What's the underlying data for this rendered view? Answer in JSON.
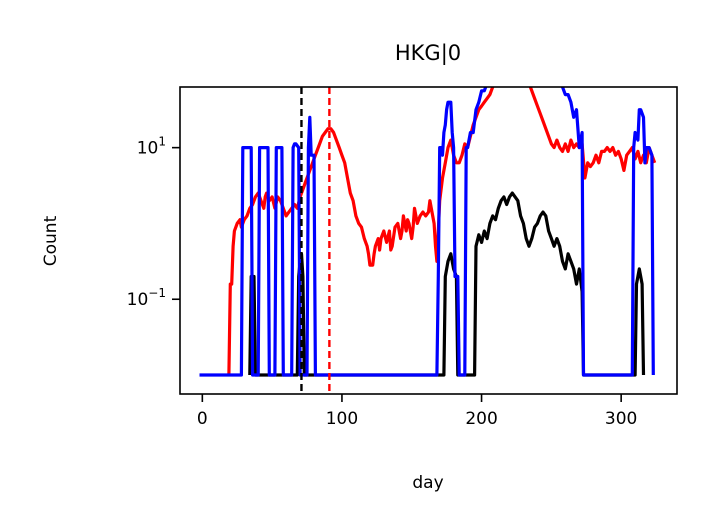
{
  "chart_data": {
    "type": "line",
    "title": "HKG|0",
    "xlabel": "day",
    "ylabel": "Count",
    "x_ticks": [
      0,
      100,
      200,
      300
    ],
    "x_tick_labels": [
      "0",
      "100",
      "200",
      "300"
    ],
    "xlim": [
      -16,
      340
    ],
    "y_scale": "log",
    "y_ticks": [
      10,
      0.1
    ],
    "y_tick_labels": [
      {
        "base": "10",
        "exp": "1"
      },
      {
        "base": "10",
        "exp": "−1"
      }
    ],
    "ylim_log10": [
      -2.25,
      1.8
    ],
    "grid": false,
    "vlines": [
      {
        "x": 71,
        "color": "#000000",
        "style": "dashed"
      },
      {
        "x": 91,
        "color": "#ff0000",
        "style": "dashed"
      }
    ],
    "series": [
      {
        "color": "#ff0000",
        "points": [
          [
            19,
            -2
          ],
          [
            20,
            -0.8
          ],
          [
            21,
            -0.8
          ],
          [
            22,
            -0.3
          ],
          [
            23,
            -0.1
          ],
          [
            25,
            0
          ],
          [
            27,
            0.05
          ],
          [
            28,
            -0.05
          ],
          [
            30,
            0.05
          ],
          [
            32,
            0.1
          ],
          [
            34,
            0.2
          ],
          [
            36,
            0.25
          ],
          [
            38,
            0.35
          ],
          [
            40,
            0.4
          ],
          [
            42,
            0.3
          ],
          [
            44,
            0.2
          ],
          [
            45,
            0.35
          ],
          [
            46,
            0.4
          ],
          [
            48,
            0.3
          ],
          [
            50,
            0.35
          ],
          [
            52,
            0.2
          ],
          [
            54,
            0.35
          ],
          [
            56,
            0.3
          ],
          [
            58,
            0.2
          ],
          [
            60,
            0.1
          ],
          [
            62,
            0.15
          ],
          [
            64,
            0.2
          ],
          [
            66,
            0.25
          ],
          [
            68,
            0.2
          ],
          [
            70,
            0.35
          ],
          [
            72,
            0.45
          ],
          [
            74,
            0.55
          ],
          [
            76,
            0.65
          ],
          [
            78,
            0.75
          ],
          [
            80,
            0.85
          ],
          [
            82,
            0.95
          ],
          [
            84,
            1.05
          ],
          [
            86,
            1.15
          ],
          [
            88,
            1.2
          ],
          [
            90,
            1.25
          ],
          [
            92,
            1.25
          ],
          [
            94,
            1.2
          ],
          [
            96,
            1.1
          ],
          [
            98,
            1.0
          ],
          [
            100,
            0.9
          ],
          [
            102,
            0.8
          ],
          [
            104,
            0.6
          ],
          [
            106,
            0.4
          ],
          [
            108,
            0.3
          ],
          [
            110,
            0.1
          ],
          [
            112,
            0.0
          ],
          [
            114,
            -0.05
          ],
          [
            116,
            -0.2
          ],
          [
            118,
            -0.3
          ],
          [
            119,
            -0.4
          ],
          [
            120,
            -0.55
          ],
          [
            122,
            -0.55
          ],
          [
            123,
            -0.4
          ],
          [
            124,
            -0.3
          ],
          [
            126,
            -0.2
          ],
          [
            127,
            -0.35
          ],
          [
            128,
            -0.2
          ],
          [
            130,
            -0.1
          ],
          [
            132,
            -0.25
          ],
          [
            134,
            -0.1
          ],
          [
            135,
            -0.35
          ],
          [
            136,
            -0.3
          ],
          [
            138,
            -0.05
          ],
          [
            140,
            0.0
          ],
          [
            142,
            -0.2
          ],
          [
            143,
            -0.1
          ],
          [
            144,
            0.1
          ],
          [
            146,
            -0.1
          ],
          [
            147,
            0.05
          ],
          [
            148,
            0.0
          ],
          [
            150,
            -0.2
          ],
          [
            151,
            -0.05
          ],
          [
            152,
            0.2
          ],
          [
            154,
            0.0
          ],
          [
            156,
            0.1
          ],
          [
            158,
            0.15
          ],
          [
            160,
            0.1
          ],
          [
            162,
            0.15
          ],
          [
            163,
            0.3
          ],
          [
            164,
            0.2
          ],
          [
            166,
            0.0
          ],
          [
            167,
            -0.3
          ],
          [
            168,
            -0.5
          ],
          [
            170,
            0.3
          ],
          [
            172,
            0.6
          ],
          [
            174,
            0.8
          ],
          [
            176,
            1.0
          ],
          [
            178,
            1.1
          ],
          [
            180,
            0.9
          ],
          [
            182,
            0.8
          ],
          [
            184,
            0.8
          ],
          [
            186,
            0.9
          ],
          [
            188,
            1.05
          ],
          [
            190,
            1.0
          ],
          [
            192,
            1.15
          ],
          [
            194,
            1.3
          ],
          [
            196,
            1.4
          ],
          [
            198,
            1.5
          ],
          [
            200,
            1.55
          ],
          [
            202,
            1.6
          ],
          [
            204,
            1.65
          ],
          [
            206,
            1.7
          ],
          [
            208,
            1.8
          ],
          [
            210,
            1.95
          ],
          [
            212,
            2.15
          ],
          [
            214,
            2.3
          ],
          [
            216,
            2.35
          ],
          [
            218,
            2.4
          ],
          [
            220,
            2.35
          ],
          [
            222,
            2.3
          ],
          [
            224,
            2.2
          ],
          [
            226,
            2.15
          ],
          [
            228,
            2.1
          ],
          [
            230,
            2.05
          ],
          [
            232,
            1.95
          ],
          [
            234,
            1.85
          ],
          [
            236,
            1.75
          ],
          [
            238,
            1.65
          ],
          [
            240,
            1.55
          ],
          [
            242,
            1.45
          ],
          [
            244,
            1.35
          ],
          [
            246,
            1.25
          ],
          [
            248,
            1.15
          ],
          [
            250,
            1.05
          ],
          [
            252,
            1.0
          ],
          [
            254,
            1.1
          ],
          [
            256,
            1.0
          ],
          [
            258,
            0.95
          ],
          [
            260,
            1.05
          ],
          [
            262,
            0.95
          ],
          [
            264,
            1.1
          ],
          [
            266,
            1.0
          ],
          [
            268,
            1.05
          ],
          [
            270,
            1.0
          ],
          [
            272,
            1.05
          ],
          [
            274,
            0.6
          ],
          [
            276,
            0.8
          ],
          [
            278,
            0.75
          ],
          [
            280,
            0.8
          ],
          [
            282,
            0.9
          ],
          [
            284,
            0.8
          ],
          [
            286,
            0.95
          ],
          [
            288,
            0.95
          ],
          [
            290,
            1.0
          ],
          [
            292,
            0.95
          ],
          [
            294,
            1.0
          ],
          [
            296,
            0.9
          ],
          [
            298,
            0.95
          ],
          [
            300,
            0.85
          ],
          [
            302,
            0.7
          ],
          [
            304,
            0.9
          ],
          [
            306,
            0.95
          ],
          [
            308,
            1.0
          ],
          [
            310,
            0.85
          ],
          [
            312,
            0.95
          ],
          [
            314,
            0.8
          ],
          [
            316,
            0.9
          ],
          [
            318,
            0.8
          ],
          [
            320,
            1.0
          ],
          [
            322,
            0.9
          ],
          [
            324,
            0.8
          ]
        ]
      },
      {
        "color": "#000000",
        "points": [
          [
            34,
            -2
          ],
          [
            35,
            -0.7
          ],
          [
            37,
            -0.7
          ],
          [
            38,
            -2
          ],
          [
            68,
            -2
          ],
          [
            69,
            -0.7
          ],
          [
            70,
            -0.5
          ],
          [
            71,
            -0.4
          ],
          [
            72,
            -0.7
          ],
          [
            73,
            -2
          ],
          [
            173,
            -2
          ],
          [
            174,
            -0.7
          ],
          [
            176,
            -0.5
          ],
          [
            178,
            -0.4
          ],
          [
            180,
            -0.6
          ],
          [
            182,
            -0.7
          ],
          [
            183,
            -2
          ],
          [
            195,
            -2
          ],
          [
            196,
            -0.3
          ],
          [
            198,
            -0.15
          ],
          [
            200,
            -0.25
          ],
          [
            202,
            -0.1
          ],
          [
            204,
            -0.2
          ],
          [
            206,
            0.0
          ],
          [
            208,
            0.1
          ],
          [
            210,
            0.05
          ],
          [
            212,
            0.2
          ],
          [
            214,
            0.3
          ],
          [
            216,
            0.35
          ],
          [
            218,
            0.25
          ],
          [
            220,
            0.35
          ],
          [
            222,
            0.4
          ],
          [
            224,
            0.35
          ],
          [
            226,
            0.3
          ],
          [
            228,
            0.1
          ],
          [
            230,
            0.0
          ],
          [
            232,
            -0.2
          ],
          [
            234,
            -0.3
          ],
          [
            236,
            -0.2
          ],
          [
            238,
            -0.05
          ],
          [
            240,
            0.0
          ],
          [
            242,
            0.1
          ],
          [
            244,
            0.15
          ],
          [
            246,
            0.1
          ],
          [
            248,
            -0.1
          ],
          [
            250,
            -0.2
          ],
          [
            252,
            -0.3
          ],
          [
            254,
            -0.2
          ],
          [
            256,
            -0.3
          ],
          [
            258,
            -0.5
          ],
          [
            260,
            -0.6
          ],
          [
            262,
            -0.4
          ],
          [
            264,
            -0.5
          ],
          [
            266,
            -0.6
          ],
          [
            268,
            -0.8
          ],
          [
            270,
            -0.6
          ],
          [
            272,
            -0.9
          ],
          [
            273,
            -2
          ],
          [
            310,
            -2
          ],
          [
            311,
            -0.8
          ],
          [
            313,
            -0.6
          ],
          [
            315,
            -0.8
          ],
          [
            316,
            -2
          ]
        ]
      },
      {
        "color": "#0000ff",
        "points": [
          [
            -2,
            -2
          ],
          [
            28,
            -2
          ],
          [
            29,
            1.0
          ],
          [
            35,
            1.0
          ],
          [
            36,
            -2
          ],
          [
            40,
            -2
          ],
          [
            41,
            1.0
          ],
          [
            47,
            1.0
          ],
          [
            48,
            -2
          ],
          [
            52,
            -2
          ],
          [
            53,
            1.0
          ],
          [
            57,
            1.0
          ],
          [
            58,
            -2
          ],
          [
            64,
            -2
          ],
          [
            65,
            1.0
          ],
          [
            66,
            1.05
          ],
          [
            67,
            1.05
          ],
          [
            69,
            1.0
          ],
          [
            70,
            -2
          ],
          [
            75,
            -2
          ],
          [
            76,
            1.0
          ],
          [
            77,
            1.4
          ],
          [
            78,
            0.9
          ],
          [
            80,
            0.9
          ],
          [
            81,
            -2
          ],
          [
            168,
            -2
          ],
          [
            169,
            -0.7
          ],
          [
            170,
            1.0
          ],
          [
            171,
            1.0
          ],
          [
            172,
            0.9
          ],
          [
            173,
            1.2
          ],
          [
            174,
            1.3
          ],
          [
            175,
            1.5
          ],
          [
            176,
            1.6
          ],
          [
            178,
            1.6
          ],
          [
            179,
            1.2
          ],
          [
            180,
            1.0
          ],
          [
            181,
            -0.7
          ],
          [
            183,
            -0.7
          ],
          [
            184,
            -2
          ],
          [
            188,
            -2
          ],
          [
            189,
            1.0
          ],
          [
            190,
            1.0
          ],
          [
            192,
            1.2
          ],
          [
            194,
            1.2
          ],
          [
            196,
            1.5
          ],
          [
            198,
            1.6
          ],
          [
            200,
            1.75
          ],
          [
            202,
            1.75
          ],
          [
            204,
            1.85
          ],
          [
            206,
            2.0
          ],
          [
            208,
            2.1
          ],
          [
            210,
            2.25
          ],
          [
            212,
            2.4
          ],
          [
            214,
            2.55
          ],
          [
            216,
            2.6
          ],
          [
            218,
            2.7
          ],
          [
            220,
            2.65
          ],
          [
            222,
            2.7
          ],
          [
            224,
            2.75
          ],
          [
            226,
            2.7
          ],
          [
            228,
            2.6
          ],
          [
            230,
            2.45
          ],
          [
            232,
            2.3
          ],
          [
            234,
            2.2
          ],
          [
            236,
            2.3
          ],
          [
            238,
            2.4
          ],
          [
            240,
            2.55
          ],
          [
            242,
            2.45
          ],
          [
            244,
            2.6
          ],
          [
            246,
            2.5
          ],
          [
            248,
            2.3
          ],
          [
            250,
            2.2
          ],
          [
            252,
            2.3
          ],
          [
            254,
            2.1
          ],
          [
            256,
            2.0
          ],
          [
            258,
            1.8
          ],
          [
            260,
            1.7
          ],
          [
            262,
            1.7
          ],
          [
            264,
            1.6
          ],
          [
            266,
            1.4
          ],
          [
            268,
            1.5
          ],
          [
            270,
            1.0
          ],
          [
            272,
            1.2
          ],
          [
            273,
            -2
          ],
          [
            308,
            -2
          ],
          [
            309,
            1.0
          ],
          [
            310,
            1.2
          ],
          [
            312,
            1.1
          ],
          [
            313,
            1.5
          ],
          [
            314,
            1.5
          ],
          [
            316,
            1.4
          ],
          [
            317,
            0.8
          ],
          [
            318,
            1.0
          ],
          [
            320,
            1.0
          ],
          [
            322,
            0.9
          ],
          [
            323,
            -2
          ]
        ]
      }
    ]
  }
}
